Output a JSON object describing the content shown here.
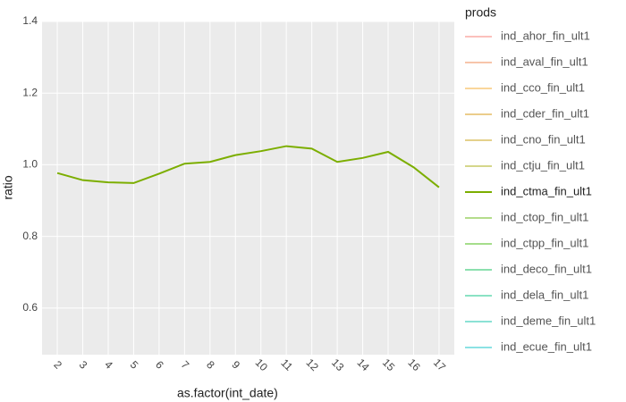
{
  "chart_data": {
    "type": "line",
    "xlabel": "as.factor(int_date)",
    "ylabel": "ratio",
    "legend_title": "prods",
    "categories": [
      "2",
      "3",
      "4",
      "5",
      "6",
      "7",
      "8",
      "9",
      "10",
      "11",
      "12",
      "13",
      "14",
      "15",
      "16",
      "17"
    ],
    "series": [
      {
        "name": "ind_ahor_fin_ult1",
        "color": "#f8766d",
        "visible": false
      },
      {
        "name": "ind_aval_fin_ult1",
        "color": "#ee8044",
        "visible": false
      },
      {
        "name": "ind_cco_fin_ult1",
        "color": "#f5a623",
        "visible": false
      },
      {
        "name": "ind_cder_fin_ult1",
        "color": "#d59100",
        "visible": false
      },
      {
        "name": "ind_cno_fin_ult1",
        "color": "#c49a00",
        "visible": false
      },
      {
        "name": "ind_ctju_fin_ult1",
        "color": "#a3a500",
        "visible": false
      },
      {
        "name": "ind_ctma_fin_ult1",
        "color": "#7cae00",
        "visible": true,
        "values": [
          0.977,
          0.957,
          0.951,
          0.949,
          0.975,
          1.003,
          1.008,
          1.027,
          1.038,
          1.052,
          1.045,
          1.008,
          1.019,
          1.036,
          0.993,
          0.937
        ]
      },
      {
        "name": "ind_ctop_fin_ult1",
        "color": "#5bb300",
        "visible": false
      },
      {
        "name": "ind_ctpp_fin_ult1",
        "color": "#39b600",
        "visible": false
      },
      {
        "name": "ind_deco_fin_ult1",
        "color": "#00bb4e",
        "visible": false
      },
      {
        "name": "ind_dela_fin_ult1",
        "color": "#00bf7d",
        "visible": false
      },
      {
        "name": "ind_deme_fin_ult1",
        "color": "#00c1a3",
        "visible": false
      },
      {
        "name": "ind_ecue_fin_ult1",
        "color": "#00bfc4",
        "visible": false
      }
    ],
    "ylim": [
      0.47,
      1.4
    ],
    "yticks": [
      0.6,
      0.8,
      {
        "value": 1,
        "label": "1.0"
      },
      1.2,
      1.4
    ],
    "grid": true,
    "legend": "right"
  }
}
